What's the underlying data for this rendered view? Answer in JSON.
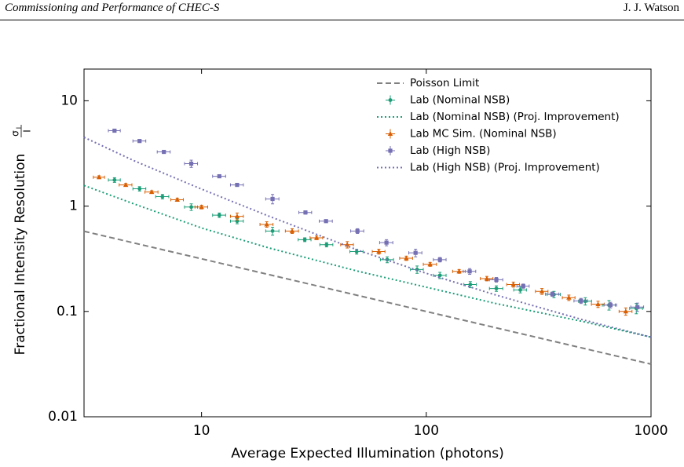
{
  "header": {
    "left": "Commissioning and Performance of CHEC-S",
    "right": "J. J. Watson"
  },
  "chart_data": {
    "type": "line",
    "xlabel": "Average Expected Illumination (photons)",
    "ylabel": {
      "text": "Fractional Intensity Resolution",
      "numerator": "σ",
      "numerator_sub": "I",
      "denominator": "I"
    },
    "xscale": "log",
    "yscale": "log",
    "xlim": [
      3,
      1000
    ],
    "ylim": [
      0.01,
      20
    ],
    "xticks": [
      10,
      100,
      1000
    ],
    "yticks": [
      0.01,
      0.1,
      1,
      10
    ],
    "legend": "upper right",
    "series": [
      {
        "name": "Poisson Limit",
        "color": "#808080",
        "style": "dashed",
        "x": [
          3,
          1000
        ],
        "values": [
          0.577,
          0.0316
        ]
      },
      {
        "name": "Lab (Nominal NSB)",
        "color": "#1b9e77",
        "style": "errorbar",
        "marker": "circle",
        "x": [
          4.1,
          5.3,
          6.7,
          9.0,
          12.0,
          14.4,
          20.7,
          28.8,
          36,
          49,
          67,
          91,
          115,
          157,
          205,
          262,
          370,
          510,
          650,
          860
        ],
        "values": [
          1.77,
          1.46,
          1.23,
          0.98,
          0.82,
          0.72,
          0.58,
          0.48,
          0.43,
          0.37,
          0.31,
          0.25,
          0.22,
          0.18,
          0.165,
          0.16,
          0.145,
          0.125,
          0.115,
          0.107
        ],
        "xerr": [
          0.25,
          0.35,
          0.45,
          0.6,
          0.8,
          0.95,
          1.4,
          1.9,
          2.4,
          3.3,
          4.5,
          6,
          7.5,
          10,
          14,
          17,
          25,
          34,
          43,
          57
        ],
        "yerr": [
          0.09,
          0.07,
          0.06,
          0.07,
          0.04,
          0.04,
          0.05,
          0.02,
          0.02,
          0.02,
          0.02,
          0.02,
          0.015,
          0.012,
          0.01,
          0.01,
          0.01,
          0.01,
          0.012,
          0.012
        ]
      },
      {
        "name": "Lab (Nominal NSB) (Proj. Improvement)",
        "color": "#1b9e77",
        "style": "dotted",
        "x": [
          3,
          5,
          10,
          20,
          50,
          100,
          200,
          500,
          1000
        ],
        "values": [
          1.57,
          1.05,
          0.62,
          0.4,
          0.24,
          0.17,
          0.12,
          0.08,
          0.057
        ]
      },
      {
        "name": "Lab MC Sim. (Nominal NSB)",
        "color": "#d95f02",
        "style": "errorbar",
        "marker": "triangle",
        "x": [
          3.5,
          4.6,
          6.0,
          7.8,
          10,
          14.4,
          19.5,
          25.3,
          32.5,
          44.5,
          61.5,
          81.5,
          104,
          140,
          186,
          244,
          327,
          431,
          581,
          772
        ],
        "values": [
          1.88,
          1.59,
          1.36,
          1.15,
          0.98,
          0.8,
          0.67,
          0.58,
          0.5,
          0.43,
          0.37,
          0.32,
          0.28,
          0.24,
          0.205,
          0.18,
          0.155,
          0.135,
          0.117,
          0.1
        ],
        "xerr": [
          0.2,
          0.3,
          0.4,
          0.5,
          0.65,
          0.95,
          1.3,
          1.7,
          2.1,
          2.9,
          4,
          5.4,
          7,
          9,
          12,
          16,
          21,
          28,
          38,
          51
        ],
        "yerr": [
          0.06,
          0.05,
          0.04,
          0.04,
          0.04,
          0.06,
          0.04,
          0.03,
          0.02,
          0.03,
          0.02,
          0.015,
          0.012,
          0.01,
          0.01,
          0.01,
          0.01,
          0.008,
          0.008,
          0.008
        ]
      },
      {
        "name": "Lab (High NSB)",
        "color": "#7570b3",
        "style": "errorbar",
        "marker": "square",
        "x": [
          4.1,
          5.3,
          6.8,
          9.0,
          12.0,
          14.4,
          20.7,
          29,
          35.8,
          49.4,
          66.5,
          89.6,
          115,
          156,
          205,
          270,
          364,
          488,
          660,
          870
        ],
        "values": [
          5.2,
          4.15,
          3.27,
          2.53,
          1.92,
          1.59,
          1.17,
          0.87,
          0.72,
          0.58,
          0.45,
          0.36,
          0.31,
          0.24,
          0.2,
          0.174,
          0.146,
          0.126,
          0.115,
          0.11
        ],
        "xerr": [
          0.25,
          0.35,
          0.45,
          0.6,
          0.8,
          0.95,
          1.4,
          1.9,
          2.4,
          3.3,
          4.5,
          6,
          7.5,
          10,
          14,
          17,
          25,
          34,
          43,
          57
        ],
        "yerr": [
          0.12,
          0.1,
          0.1,
          0.2,
          0.06,
          0.04,
          0.12,
          0.03,
          0.02,
          0.03,
          0.03,
          0.03,
          0.015,
          0.015,
          0.01,
          0.008,
          0.007,
          0.007,
          0.007,
          0.01
        ]
      },
      {
        "name": "Lab (High NSB) (Proj. Improvement)",
        "color": "#7570b3",
        "style": "dotted",
        "x": [
          3,
          5,
          10,
          20,
          50,
          100,
          200,
          500,
          1000
        ],
        "values": [
          4.5,
          2.7,
          1.45,
          0.8,
          0.38,
          0.23,
          0.145,
          0.083,
          0.057
        ]
      }
    ]
  }
}
